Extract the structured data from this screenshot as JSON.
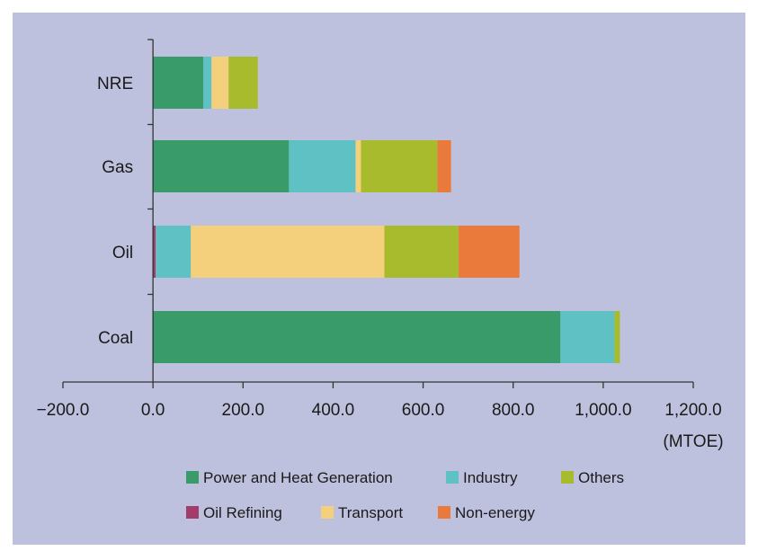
{
  "chart_data": {
    "type": "bar",
    "orientation": "horizontal",
    "stacked": true,
    "title": "",
    "xlabel": "",
    "ylabel": "",
    "x_unit": "(MTOE)",
    "categories": [
      "NRE",
      "Gas",
      "Oil",
      "Coal"
    ],
    "xlim": [
      -200,
      1200
    ],
    "x_ticks": [
      -200,
      0,
      200,
      400,
      600,
      800,
      1000,
      1200
    ],
    "x_tick_labels": [
      "−200.0",
      "0.0",
      "200.0",
      "400.0",
      "600.0",
      "800.0",
      "1,000.0",
      "1,200.0"
    ],
    "grid": false,
    "legend_position": "bottom",
    "series": [
      {
        "name": "Power and Heat Generation",
        "color": "#3a9b6a",
        "values": [
          112,
          302,
          0,
          905
        ]
      },
      {
        "name": "Industry",
        "color": "#5fc1c4",
        "values": [
          18,
          148,
          78,
          120
        ]
      },
      {
        "name": "Others",
        "color": "#a8bb2c",
        "values": [
          65,
          170,
          165,
          12
        ]
      },
      {
        "name": "Oil Refining",
        "color": "#a33b6b",
        "values": [
          0,
          0,
          6,
          0
        ]
      },
      {
        "name": "Transport",
        "color": "#f5d07c",
        "values": [
          38,
          12,
          430,
          0
        ]
      },
      {
        "name": "Non-energy",
        "color": "#ea7a3c",
        "values": [
          0,
          30,
          135,
          0
        ]
      }
    ],
    "stack_order": [
      [
        "Power and Heat Generation",
        "Industry",
        "Transport",
        "Others"
      ],
      [
        "Power and Heat Generation",
        "Industry",
        "Transport",
        "Others",
        "Non-energy"
      ],
      [
        "Oil Refining",
        "Industry",
        "Transport",
        "Others",
        "Non-energy"
      ],
      [
        "Power and Heat Generation",
        "Industry",
        "Others"
      ]
    ],
    "legend_rows": [
      [
        "Power and Heat Generation",
        "Industry",
        "Others"
      ],
      [
        "Oil Refining",
        "Transport",
        "Non-energy"
      ]
    ]
  }
}
